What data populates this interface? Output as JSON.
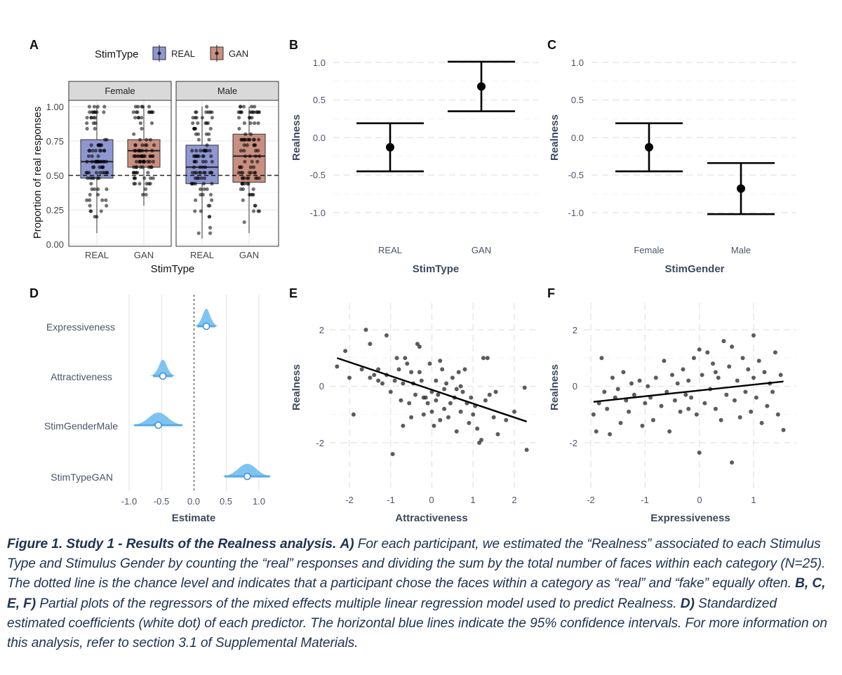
{
  "panels": {
    "A": {
      "letter": "A",
      "legend_title": "StimType",
      "legend_items": [
        "REAL",
        "GAN"
      ],
      "colors": {
        "REAL": "#8e97d0",
        "GAN": "#c98f80"
      },
      "ylabel": "Proportion of real responses",
      "xlabel": "StimType",
      "y_ticks": [
        "0.00",
        "0.25",
        "0.50",
        "0.75",
        "1.00"
      ],
      "x_ticks": [
        "REAL",
        "GAN"
      ],
      "facets": [
        "Female",
        "Male"
      ]
    },
    "B": {
      "letter": "B",
      "ylabel": "Realness",
      "xlabel": "StimType",
      "y_ticks": [
        "-1.0",
        "-0.5",
        "0.0",
        "0.5",
        "1.0"
      ],
      "x_ticks": [
        "REAL",
        "GAN"
      ]
    },
    "C": {
      "letter": "C",
      "ylabel": "Realness",
      "xlabel": "StimGender",
      "y_ticks": [
        "-1.0",
        "-0.5",
        "0.0",
        "0.5",
        "1.0"
      ],
      "x_ticks": [
        "Female",
        "Male"
      ]
    },
    "D": {
      "letter": "D",
      "xlabel": "Estimate",
      "x_ticks": [
        "-1.0",
        "-0.5",
        "0.0",
        "0.5",
        "1.0"
      ],
      "rows": [
        "Expressiveness",
        "Attractiveness",
        "StimGenderMale",
        "StimTypeGAN"
      ],
      "color": "#7fc3f3"
    },
    "E": {
      "letter": "E",
      "ylabel": "Realness",
      "xlabel": "Attractiveness",
      "y_ticks": [
        "-2",
        "0",
        "2"
      ],
      "x_ticks": [
        "-2",
        "-1",
        "0",
        "1",
        "2"
      ]
    },
    "F": {
      "letter": "F",
      "ylabel": "Realness",
      "xlabel": "Expressiveness",
      "y_ticks": [
        "-2",
        "0",
        "2"
      ],
      "x_ticks": [
        "-2",
        "-1",
        "0",
        "1"
      ]
    }
  },
  "caption": {
    "bold": "Figure 1. Study 1 - Results of the Realness analysis.",
    "a_label": "A)",
    "a_text": "For each participant, we estimated the “Realness” associated to each Stimulus Type and Stimulus Gender by counting the “real” responses and dividing the sum by the total number of faces within each category (N=25). The dotted line is the chance level and indicates that a participant chose the faces within a category as “real” and “fake” equally often.",
    "bcef_label": "B, C, E, F)",
    "bcef_text": "Partial plots of the regressors of the mixed effects multiple linear regression model used to predict Realness.",
    "d_label": "D)",
    "d_text": "Standardized estimated coefficients (white dot) of each predictor. The horizontal blue lines indicate the 95% confidence intervals. For more information on this analysis, refer to section 3.1 of Supplemental Materials."
  },
  "chart_data": [
    {
      "panel": "A",
      "type": "box",
      "ylim": [
        0,
        1
      ],
      "reference_line": 0.5,
      "boxes": [
        {
          "facet": "Female",
          "category": "REAL",
          "q1": 0.48,
          "median": 0.6,
          "q3": 0.76,
          "whisker_low": 0.08,
          "whisker_high": 1.0
        },
        {
          "facet": "Female",
          "category": "GAN",
          "q1": 0.56,
          "median": 0.68,
          "q3": 0.76,
          "whisker_low": 0.28,
          "whisker_high": 1.0
        },
        {
          "facet": "Male",
          "category": "REAL",
          "q1": 0.44,
          "median": 0.56,
          "q3": 0.72,
          "whisker_low": 0.04,
          "whisker_high": 1.0
        },
        {
          "facet": "Male",
          "category": "GAN",
          "q1": 0.45,
          "median": 0.64,
          "q3": 0.8,
          "whisker_low": 0.08,
          "whisker_high": 1.0
        }
      ]
    },
    {
      "panel": "B",
      "type": "errorbar",
      "ylim": [
        -1.1,
        1.1
      ],
      "points": [
        {
          "x": "REAL",
          "y": -0.13,
          "low": -0.45,
          "high": 0.19
        },
        {
          "x": "GAN",
          "y": 0.68,
          "low": 0.35,
          "high": 1.01
        }
      ]
    },
    {
      "panel": "C",
      "type": "errorbar",
      "ylim": [
        -1.1,
        1.1
      ],
      "points": [
        {
          "x": "Female",
          "y": -0.13,
          "low": -0.45,
          "high": 0.19
        },
        {
          "x": "Male",
          "y": -0.68,
          "low": -1.02,
          "high": -0.34
        }
      ]
    },
    {
      "panel": "D",
      "type": "coefficient",
      "xlim": [
        -1.0,
        1.0
      ],
      "coefficients": [
        {
          "name": "Expressiveness",
          "estimate": 0.19,
          "ci": [
            0.05,
            0.33
          ]
        },
        {
          "name": "Attractiveness",
          "estimate": -0.48,
          "ci": [
            -0.63,
            -0.33
          ]
        },
        {
          "name": "StimGenderMale",
          "estimate": -0.55,
          "ci": [
            -0.92,
            -0.18
          ]
        },
        {
          "name": "StimTypeGAN",
          "estimate": 0.82,
          "ci": [
            0.47,
            1.17
          ]
        }
      ]
    },
    {
      "panel": "E",
      "type": "scatter",
      "xlim": [
        -2.4,
        2.4
      ],
      "ylim": [
        -2.7,
        2.2
      ],
      "fit_line": {
        "x": [
          -2.3,
          2.3
        ],
        "y": [
          1.0,
          -1.25
        ]
      },
      "points": [
        [
          -2.3,
          0.7
        ],
        [
          -2.1,
          1.25
        ],
        [
          -2.0,
          0.3
        ],
        [
          -1.9,
          -1.0
        ],
        [
          -1.7,
          0.6
        ],
        [
          -1.6,
          2.0
        ],
        [
          -1.5,
          0.3
        ],
        [
          -1.5,
          1.5
        ],
        [
          -1.4,
          0.4
        ],
        [
          -1.3,
          0.2
        ],
        [
          -1.3,
          0.6
        ],
        [
          -1.2,
          0.1
        ],
        [
          -1.1,
          1.8
        ],
        [
          -1.1,
          0.4
        ],
        [
          -1.0,
          -0.2
        ],
        [
          -0.95,
          -2.4
        ],
        [
          -0.9,
          0.2
        ],
        [
          -0.85,
          1.0
        ],
        [
          -0.8,
          0.6
        ],
        [
          -0.75,
          -0.5
        ],
        [
          -0.7,
          -1.4
        ],
        [
          -0.7,
          0.1
        ],
        [
          -0.65,
          1.0
        ],
        [
          -0.6,
          0.8
        ],
        [
          -0.5,
          0.5
        ],
        [
          -0.5,
          -1.1
        ],
        [
          -0.45,
          0.1
        ],
        [
          -0.4,
          -0.3
        ],
        [
          -0.35,
          1.5
        ],
        [
          -0.3,
          1.4
        ],
        [
          -0.3,
          0.5
        ],
        [
          -0.25,
          0.2
        ],
        [
          -0.2,
          -1.0
        ],
        [
          -0.15,
          -0.4
        ],
        [
          -0.1,
          -0.6
        ],
        [
          -0.05,
          0.8
        ],
        [
          0.0,
          -0.2
        ],
        [
          0.0,
          -0.9
        ],
        [
          0.05,
          -1.4
        ],
        [
          0.1,
          0.2
        ],
        [
          0.1,
          -0.5
        ],
        [
          0.15,
          -0.3
        ],
        [
          0.2,
          -1.2
        ],
        [
          0.25,
          0.6
        ],
        [
          0.3,
          -0.1
        ],
        [
          0.3,
          -0.8
        ],
        [
          0.35,
          0.1
        ],
        [
          0.4,
          -1.1
        ],
        [
          0.45,
          -0.6
        ],
        [
          0.5,
          0.3
        ],
        [
          0.55,
          -0.4
        ],
        [
          0.6,
          -1.6
        ],
        [
          0.6,
          -0.1
        ],
        [
          0.65,
          0.5
        ],
        [
          0.7,
          -0.9
        ],
        [
          0.75,
          -0.2
        ],
        [
          0.8,
          0.6
        ],
        [
          0.85,
          -0.6
        ],
        [
          0.9,
          -1.3
        ],
        [
          0.95,
          -0.4
        ],
        [
          1.0,
          -1.0
        ],
        [
          1.05,
          -0.7
        ],
        [
          1.1,
          -1.5
        ],
        [
          1.15,
          -2.0
        ],
        [
          1.2,
          -1.9
        ],
        [
          1.25,
          1.0
        ],
        [
          1.3,
          -0.5
        ],
        [
          1.35,
          1.0
        ],
        [
          1.4,
          -0.3
        ],
        [
          1.5,
          -1.1
        ],
        [
          1.55,
          -0.2
        ],
        [
          1.6,
          -1.7
        ],
        [
          1.8,
          -1.2
        ],
        [
          2.0,
          -0.9
        ],
        [
          2.25,
          -0.05
        ],
        [
          2.3,
          -2.25
        ],
        [
          -0.55,
          -0.6
        ],
        [
          0.2,
          0.9
        ],
        [
          0.7,
          0.0
        ],
        [
          -0.2,
          -0.4
        ]
      ]
    },
    {
      "panel": "F",
      "type": "scatter",
      "xlim": [
        -2.1,
        1.6
      ],
      "ylim": [
        -2.7,
        2.2
      ],
      "fit_line": {
        "x": [
          -1.95,
          1.55
        ],
        "y": [
          -0.55,
          0.17
        ]
      },
      "points": [
        [
          -1.95,
          -1.0
        ],
        [
          -1.9,
          -1.6
        ],
        [
          -1.85,
          -0.6
        ],
        [
          -1.8,
          1.0
        ],
        [
          -1.75,
          -0.2
        ],
        [
          -1.7,
          -0.8
        ],
        [
          -1.65,
          -1.7
        ],
        [
          -1.6,
          0.3
        ],
        [
          -1.55,
          -0.4
        ],
        [
          -1.5,
          -0.1
        ],
        [
          -1.45,
          -1.3
        ],
        [
          -1.4,
          0.5
        ],
        [
          -1.35,
          -0.5
        ],
        [
          -1.3,
          -0.9
        ],
        [
          -1.25,
          0.1
        ],
        [
          -1.2,
          -0.3
        ],
        [
          -1.1,
          0.2
        ],
        [
          -1.05,
          -1.4
        ],
        [
          -1.0,
          -0.6
        ],
        [
          -0.95,
          0.0
        ],
        [
          -0.9,
          -0.4
        ],
        [
          -0.85,
          -1.2
        ],
        [
          -0.8,
          0.3
        ],
        [
          -0.7,
          -0.7
        ],
        [
          -0.65,
          0.9
        ],
        [
          -0.6,
          -0.2
        ],
        [
          -0.55,
          -1.6
        ],
        [
          -0.5,
          0.4
        ],
        [
          -0.45,
          -0.5
        ],
        [
          -0.4,
          0.1
        ],
        [
          -0.35,
          -0.9
        ],
        [
          -0.3,
          0.6
        ],
        [
          -0.25,
          -0.3
        ],
        [
          -0.2,
          0.2
        ],
        [
          -0.15,
          -0.4
        ],
        [
          -0.1,
          1.0
        ],
        [
          -0.05,
          -1.0
        ],
        [
          0.0,
          -2.35
        ],
        [
          0.0,
          1.3
        ],
        [
          0.05,
          0.4
        ],
        [
          0.1,
          -0.6
        ],
        [
          0.15,
          1.2
        ],
        [
          0.2,
          -0.1
        ],
        [
          0.25,
          0.8
        ],
        [
          0.3,
          -0.8
        ],
        [
          0.35,
          0.3
        ],
        [
          0.4,
          -1.2
        ],
        [
          0.45,
          1.6
        ],
        [
          0.5,
          -0.3
        ],
        [
          0.55,
          0.7
        ],
        [
          0.6,
          -2.7
        ],
        [
          0.6,
          1.4
        ],
        [
          0.65,
          -0.5
        ],
        [
          0.7,
          0.2
        ],
        [
          0.75,
          -1.1
        ],
        [
          0.8,
          1.0
        ],
        [
          0.85,
          -0.2
        ],
        [
          0.9,
          0.6
        ],
        [
          0.95,
          -0.9
        ],
        [
          1.0,
          1.8
        ],
        [
          1.0,
          0.3
        ],
        [
          1.05,
          -0.4
        ],
        [
          1.1,
          0.9
        ],
        [
          1.15,
          -1.3
        ],
        [
          1.2,
          0.5
        ],
        [
          1.25,
          -0.7
        ],
        [
          1.3,
          0.1
        ],
        [
          1.35,
          -0.2
        ],
        [
          1.4,
          1.2
        ],
        [
          1.45,
          -1.0
        ],
        [
          1.5,
          0.4
        ],
        [
          1.55,
          -1.55
        ],
        [
          0.3,
          0.5
        ],
        [
          -0.2,
          -0.8
        ]
      ]
    }
  ]
}
